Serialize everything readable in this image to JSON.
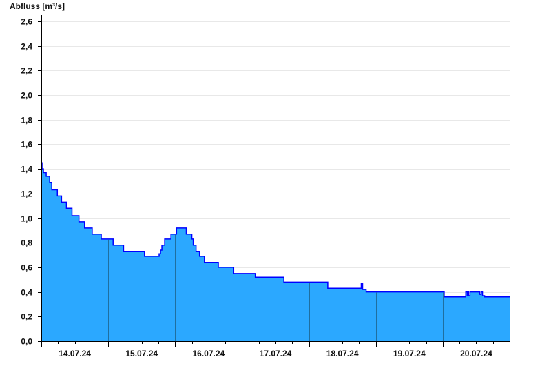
{
  "chart_data": {
    "type": "area",
    "title": "",
    "ylabel": "Abfluss [m³/s]",
    "xlabel": "",
    "ylim": [
      0,
      2.6
    ],
    "xlim": [
      "2024-07-14T00:00",
      "2024-07-21T00:00"
    ],
    "yticks": [
      "0,0",
      "0,2",
      "0,4",
      "0,6",
      "0,8",
      "1,0",
      "1,2",
      "1,4",
      "1,6",
      "1,8",
      "2,0",
      "2,2",
      "2,4",
      "2,6"
    ],
    "xticks": [
      "14.07.24",
      "15.07.24",
      "16.07.24",
      "17.07.24",
      "18.07.24",
      "19.07.24",
      "20.07.24"
    ],
    "grid": true,
    "step": true,
    "fill_color": "#2ba8ff",
    "line_color": "#0000ff",
    "series": [
      {
        "x": [
          "2024-07-14T00:00",
          "2024-07-14T00:15",
          "2024-07-14T00:45",
          "2024-07-14T01:45",
          "2024-07-14T03:00",
          "2024-07-14T03:45",
          "2024-07-14T05:45",
          "2024-07-14T07:15",
          "2024-07-14T09:00",
          "2024-07-14T11:00",
          "2024-07-14T13:30",
          "2024-07-14T15:30",
          "2024-07-14T18:15",
          "2024-07-14T21:30",
          "2024-07-15T01:45",
          "2024-07-15T05:30",
          "2024-07-15T13:00",
          "2024-07-15T18:15",
          "2024-07-15T18:45",
          "2024-07-15T19:15",
          "2024-07-15T20:15",
          "2024-07-15T22:30",
          "2024-07-16T00:30",
          "2024-07-16T04:00",
          "2024-07-16T06:00",
          "2024-07-16T06:30",
          "2024-07-16T07:30",
          "2024-07-16T08:45",
          "2024-07-16T10:30",
          "2024-07-16T15:30",
          "2024-07-16T20:30",
          "2024-07-16T21:00",
          "2024-07-17T04:45",
          "2024-07-17T15:00",
          "2024-07-18T06:45",
          "2024-07-18T18:45",
          "2024-07-18T19:15",
          "2024-07-18T20:30",
          "2024-07-20T00:30",
          "2024-07-20T08:15",
          "2024-07-20T08:45",
          "2024-07-20T09:00",
          "2024-07-20T09:15",
          "2024-07-20T09:45",
          "2024-07-20T13:15",
          "2024-07-20T13:45",
          "2024-07-20T14:15",
          "2024-07-20T15:00"
        ],
        "y": [
          1.45,
          1.4,
          1.37,
          1.34,
          1.29,
          1.23,
          1.18,
          1.13,
          1.08,
          1.02,
          0.97,
          0.92,
          0.87,
          0.83,
          0.78,
          0.73,
          0.69,
          0.71,
          0.74,
          0.78,
          0.83,
          0.87,
          0.92,
          0.87,
          0.83,
          0.78,
          0.73,
          0.69,
          0.64,
          0.6,
          0.6,
          0.55,
          0.52,
          0.48,
          0.43,
          0.47,
          0.42,
          0.4,
          0.36,
          0.4,
          0.37,
          0.4,
          0.37,
          0.4,
          0.38,
          0.4,
          0.37,
          0.36
        ]
      }
    ]
  }
}
